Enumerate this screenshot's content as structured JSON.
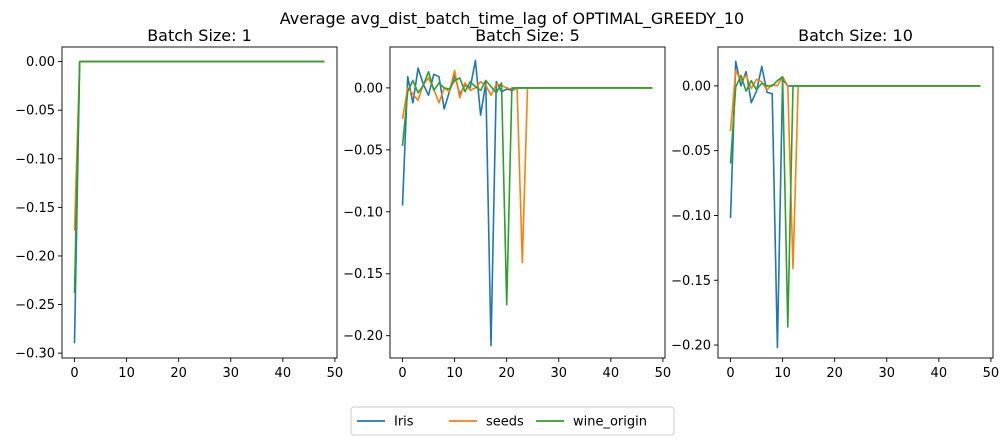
{
  "chart_data": {
    "type": "line",
    "title": "Average avg_dist_batch_time_lag of OPTIMAL_GREEDY_10",
    "legend": {
      "placement": "bottom-center",
      "entries": [
        "Iris",
        "seeds",
        "wine_origin"
      ]
    },
    "colors": {
      "Iris": "#1f77b4",
      "seeds": "#ff7f0e",
      "wine_origin": "#2ca02c"
    },
    "grid": false,
    "subplots": [
      {
        "title": "Batch Size: 1",
        "xlim": [
          -2.4,
          50.4
        ],
        "ylim": [
          -0.305,
          0.015
        ],
        "xticks": [
          0,
          10,
          20,
          30,
          40,
          50
        ],
        "yticks": [
          0.0,
          -0.05,
          -0.1,
          -0.15,
          -0.2,
          -0.25,
          -0.3
        ],
        "ytick_labels": [
          "0.00",
          "−0.05",
          "−0.10",
          "−0.15",
          "−0.20",
          "−0.25",
          "−0.30"
        ],
        "series": [
          {
            "name": "Iris",
            "x": [
              0,
              1,
              2,
              48
            ],
            "y": [
              -0.29,
              0.0,
              0.0,
              0.0
            ]
          },
          {
            "name": "seeds",
            "x": [
              0,
              1,
              2,
              48
            ],
            "y": [
              -0.174,
              0.0,
              0.0,
              0.0
            ]
          },
          {
            "name": "wine_origin",
            "x": [
              0,
              1,
              2,
              48
            ],
            "y": [
              -0.238,
              0.0,
              0.0,
              0.0
            ]
          }
        ]
      },
      {
        "title": "Batch Size: 5",
        "xlim": [
          -2.4,
          50.4
        ],
        "ylim": [
          -0.218,
          0.033
        ],
        "xticks": [
          0,
          10,
          20,
          30,
          40,
          50
        ],
        "yticks": [
          0.0,
          -0.05,
          -0.1,
          -0.15,
          -0.2
        ],
        "ytick_labels": [
          "0.00",
          "−0.05",
          "−0.10",
          "−0.15",
          "−0.20"
        ],
        "series": [
          {
            "name": "Iris",
            "x": [
              0,
              1,
              2,
              3,
              4,
              5,
              6,
              7,
              8,
              9,
              10,
              11,
              12,
              13,
              14,
              15,
              16,
              17,
              18,
              19,
              20,
              21,
              22,
              23,
              24,
              48
            ],
            "y": [
              -0.095,
              0.009,
              -0.012,
              0.016,
              0.003,
              -0.006,
              0.011,
              0.009,
              -0.017,
              -0.003,
              0.01,
              -0.005,
              0.002,
              0.0,
              0.022,
              -0.022,
              0.004,
              -0.208,
              0.005,
              -0.003,
              -0.001,
              -0.002,
              0.0,
              0.0,
              0.0,
              0.0
            ]
          },
          {
            "name": "seeds",
            "x": [
              0,
              1,
              2,
              3,
              4,
              5,
              6,
              7,
              8,
              9,
              10,
              11,
              12,
              13,
              14,
              15,
              16,
              17,
              18,
              19,
              20,
              21,
              22,
              23,
              24,
              48
            ],
            "y": [
              -0.025,
              0.0,
              -0.005,
              -0.01,
              0.003,
              0.008,
              -0.001,
              -0.012,
              0.0,
              -0.003,
              0.014,
              -0.008,
              0.004,
              -0.002,
              0.0,
              0.005,
              0.002,
              -0.006,
              0.003,
              0.002,
              0.0,
              -0.001,
              0.0,
              -0.141,
              0.0,
              0.0
            ]
          },
          {
            "name": "wine_origin",
            "x": [
              0,
              1,
              2,
              3,
              4,
              5,
              6,
              7,
              8,
              9,
              10,
              11,
              12,
              13,
              14,
              15,
              16,
              17,
              18,
              19,
              20,
              21,
              22,
              23,
              24,
              48
            ],
            "y": [
              -0.047,
              -0.003,
              0.006,
              -0.004,
              0.002,
              0.013,
              -0.002,
              0.004,
              0.0,
              -0.001,
              0.006,
              0.008,
              -0.003,
              0.005,
              0.001,
              -0.002,
              0.006,
              0.001,
              -0.004,
              0.004,
              -0.175,
              0.0,
              0.0,
              0.0,
              0.0,
              0.0
            ]
          }
        ]
      },
      {
        "title": "Batch Size: 10",
        "xlim": [
          -2.4,
          50.4
        ],
        "ylim": [
          -0.21,
          0.03
        ],
        "xticks": [
          0,
          10,
          20,
          30,
          40,
          50
        ],
        "yticks": [
          0.0,
          -0.05,
          -0.1,
          -0.15,
          -0.2
        ],
        "ytick_labels": [
          "0.00",
          "−0.05",
          "−0.10",
          "−0.15",
          "−0.20"
        ],
        "series": [
          {
            "name": "Iris",
            "x": [
              0,
              1,
              2,
              3,
              4,
              5,
              6,
              7,
              8,
              9,
              10,
              11,
              12,
              48
            ],
            "y": [
              -0.102,
              0.019,
              0.0,
              0.011,
              -0.013,
              -0.004,
              0.015,
              -0.005,
              -0.006,
              -0.202,
              0.005,
              0.0,
              0.0,
              0.0
            ]
          },
          {
            "name": "seeds",
            "x": [
              0,
              1,
              2,
              3,
              4,
              5,
              6,
              7,
              8,
              9,
              10,
              11,
              12,
              13,
              48
            ],
            "y": [
              -0.035,
              0.012,
              0.004,
              0.008,
              -0.002,
              0.005,
              0.003,
              -0.003,
              0.001,
              0.0,
              0.007,
              0.0,
              -0.141,
              0.0,
              0.0
            ]
          },
          {
            "name": "wine_origin",
            "x": [
              0,
              1,
              2,
              3,
              4,
              5,
              6,
              7,
              8,
              9,
              10,
              11,
              12,
              48
            ],
            "y": [
              -0.06,
              -0.001,
              0.008,
              -0.004,
              0.004,
              -0.003,
              0.002,
              0.0,
              0.0,
              0.004,
              0.007,
              -0.186,
              0.0,
              0.0
            ]
          }
        ]
      }
    ]
  }
}
